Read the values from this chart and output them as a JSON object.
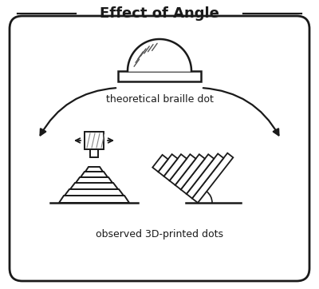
{
  "title": "Effect of Angle",
  "label_top": "theoretical braille dot",
  "label_bottom": "observed 3D-printed dots",
  "bg_color": "#ffffff",
  "line_color": "#1a1a1a",
  "text_color": "#1a1a1a",
  "fig_width": 4.0,
  "fig_height": 3.62
}
